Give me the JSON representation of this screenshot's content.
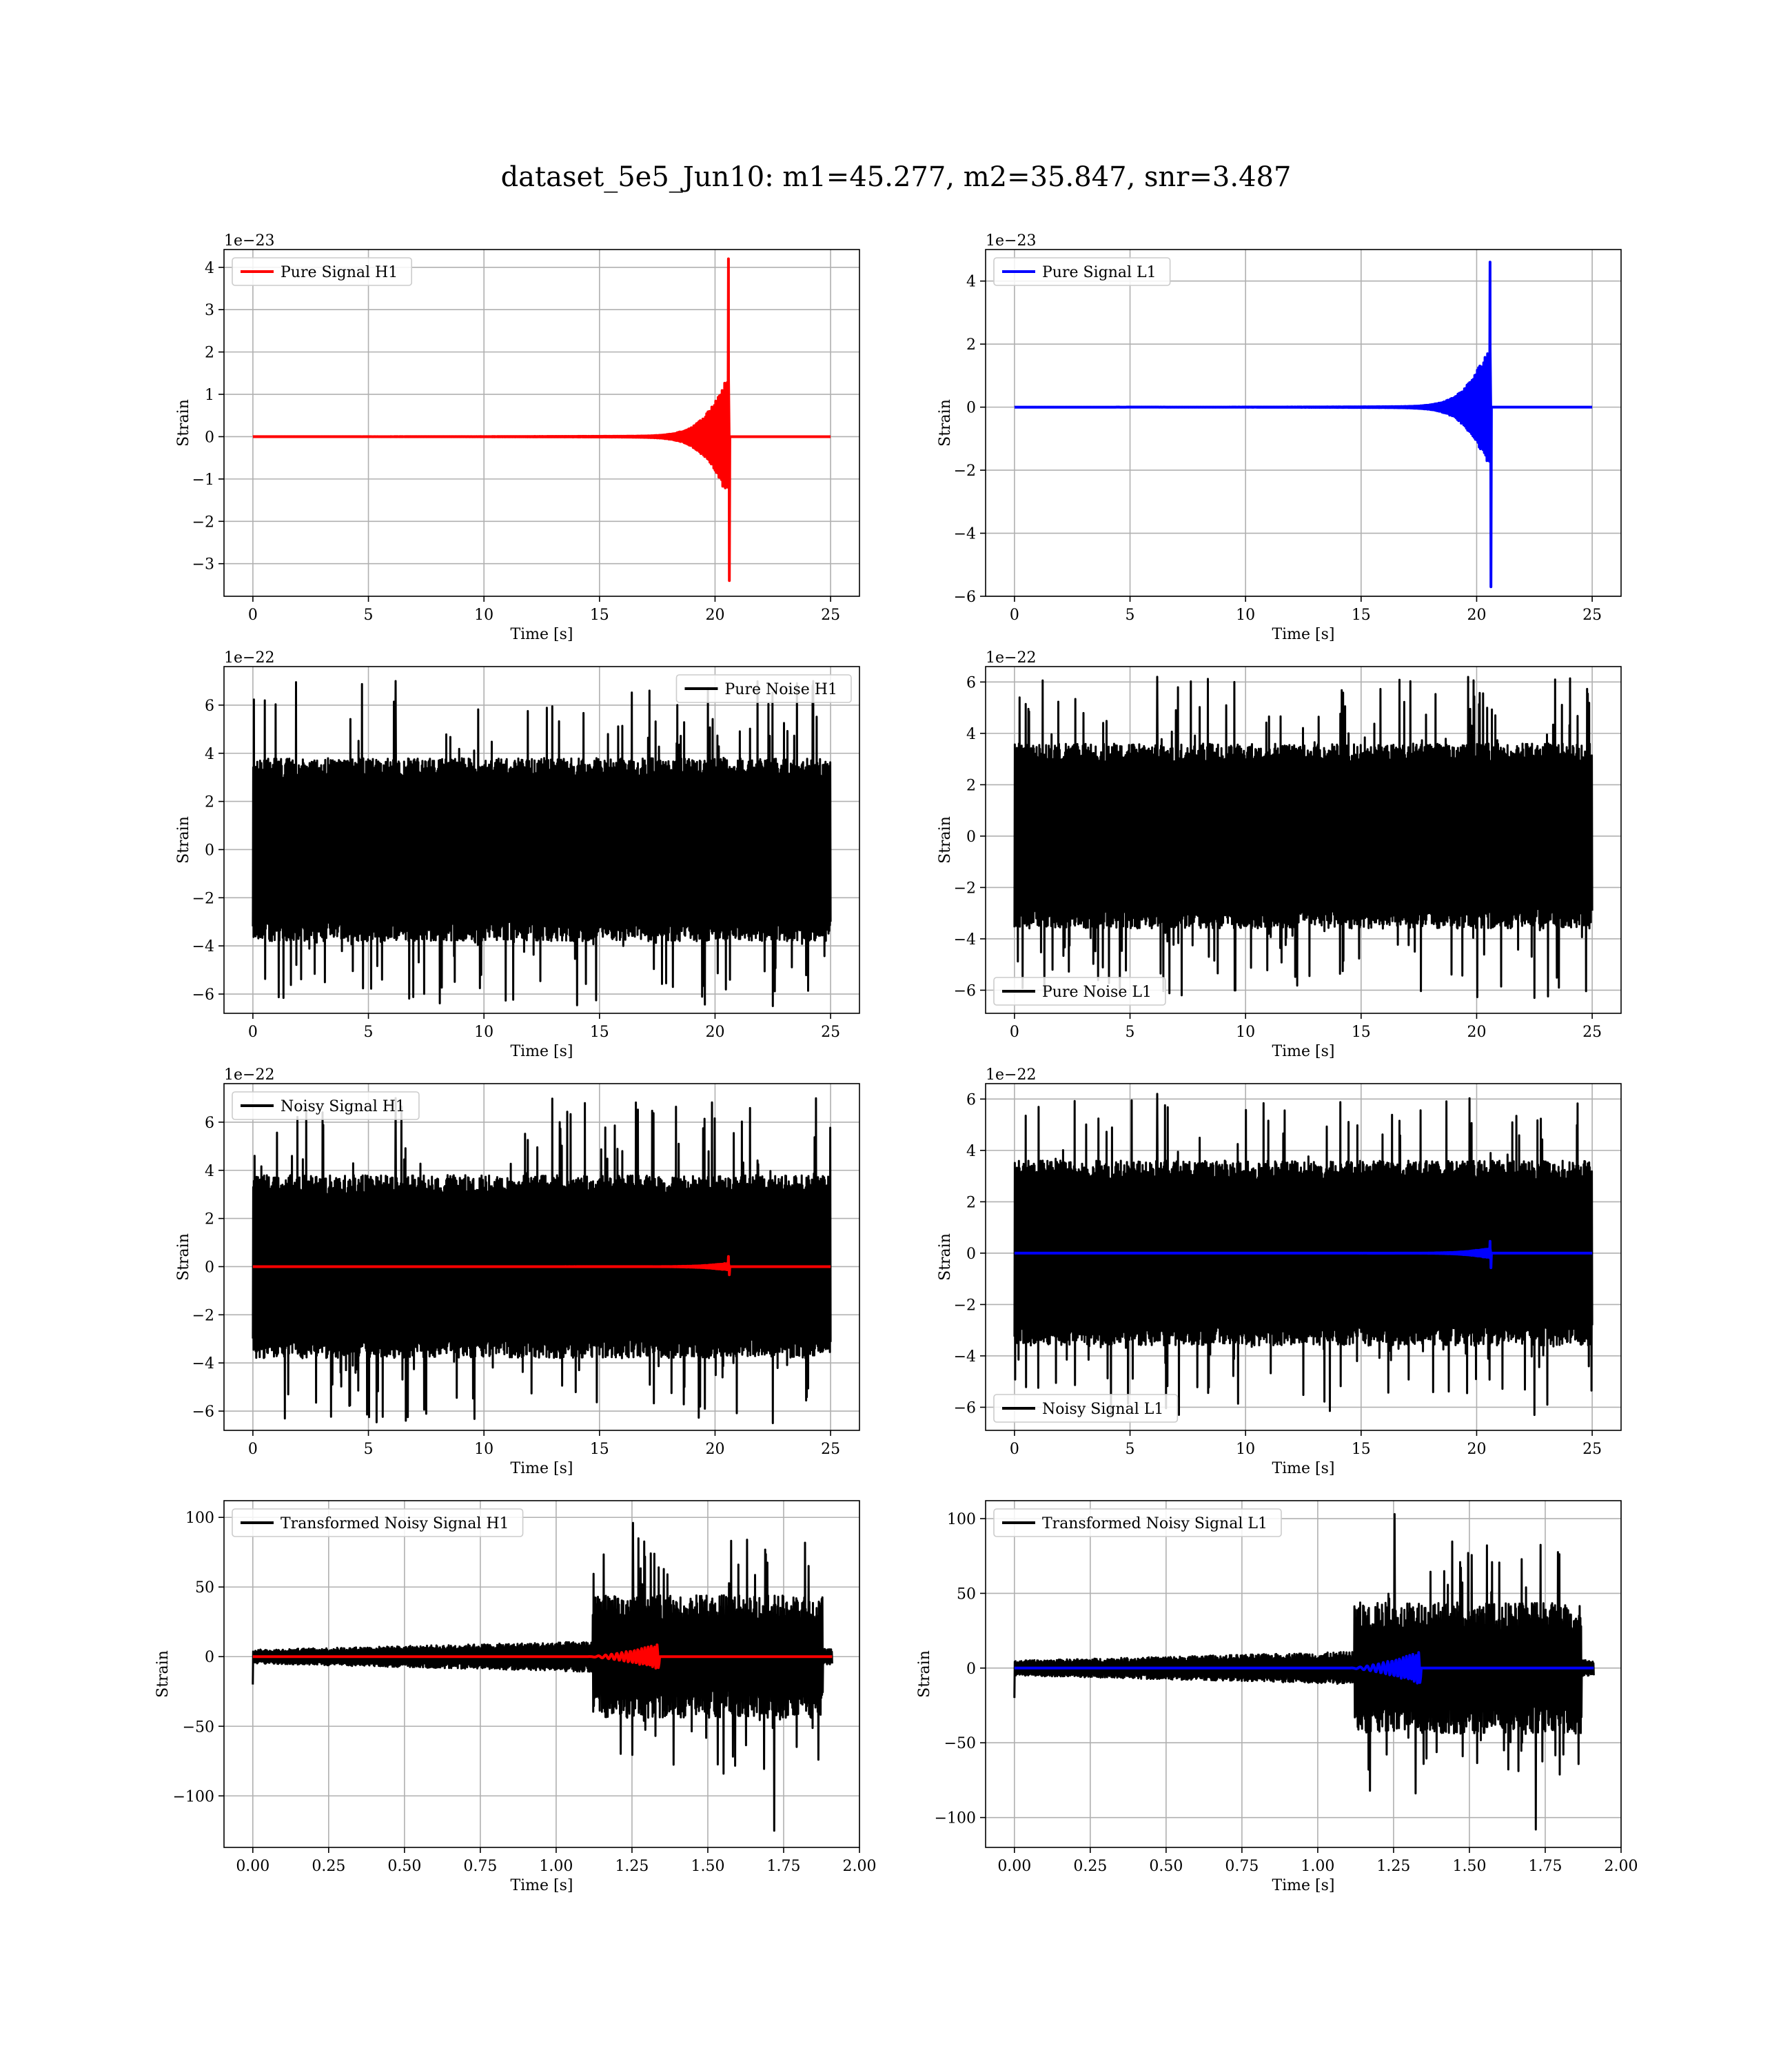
{
  "figure": {
    "title": "dataset_5e5_Jun10: m1=45.277, m2=35.847, snr=3.487"
  },
  "colors": {
    "h1": "#ff0000",
    "l1": "#0000ff",
    "noise": "#000000"
  },
  "chart_data": [
    {
      "type": "line",
      "id": "pure-signal-h1",
      "xlabel": "Time [s]",
      "ylabel": "Strain",
      "offset_label": "1e−23",
      "xlim": [
        -1.25,
        26.25
      ],
      "ylim": [
        -3.77,
        4.42
      ],
      "xticks": [
        0,
        5,
        10,
        15,
        20,
        25
      ],
      "xtick_labels": [
        "0",
        "5",
        "10",
        "15",
        "20",
        "25"
      ],
      "yticks": [
        -3,
        -2,
        -1,
        0,
        1,
        2,
        3,
        4
      ],
      "ytick_labels": [
        "−3",
        "−2",
        "−1",
        "0",
        "1",
        "2",
        "3",
        "4"
      ],
      "grid": true,
      "legend_loc": "upper-left",
      "series": [
        {
          "name": "Pure Signal H1",
          "color": "#ff0000",
          "kind": "chirp",
          "x_range": [
            0,
            25
          ],
          "merger_time": 20.6,
          "peak_max": 4.2,
          "peak_min": -3.4,
          "pre_merger_amp": 1.4
        }
      ]
    },
    {
      "type": "line",
      "id": "pure-signal-l1",
      "xlabel": "Time [s]",
      "ylabel": "Strain",
      "offset_label": "1e−23",
      "xlim": [
        -1.25,
        26.25
      ],
      "ylim": [
        -6.0,
        5.0
      ],
      "xticks": [
        0,
        5,
        10,
        15,
        20,
        25
      ],
      "xtick_labels": [
        "0",
        "5",
        "10",
        "15",
        "20",
        "25"
      ],
      "yticks": [
        -6,
        -4,
        -2,
        0,
        2,
        4
      ],
      "ytick_labels": [
        "−6",
        "−4",
        "−2",
        "0",
        "2",
        "4"
      ],
      "grid": true,
      "legend_loc": "upper-left",
      "series": [
        {
          "name": "Pure Signal L1",
          "color": "#0000ff",
          "kind": "chirp",
          "x_range": [
            0,
            25
          ],
          "merger_time": 20.6,
          "peak_max": 4.6,
          "peak_min": -5.7,
          "pre_merger_amp": 1.9
        }
      ]
    },
    {
      "type": "line",
      "id": "pure-noise-h1",
      "xlabel": "Time [s]",
      "ylabel": "Strain",
      "offset_label": "1e−22",
      "xlim": [
        -1.25,
        26.25
      ],
      "ylim": [
        -6.8,
        7.6
      ],
      "xticks": [
        0,
        5,
        10,
        15,
        20,
        25
      ],
      "xtick_labels": [
        "0",
        "5",
        "10",
        "15",
        "20",
        "25"
      ],
      "yticks": [
        -6,
        -4,
        -2,
        0,
        2,
        4,
        6
      ],
      "ytick_labels": [
        "−6",
        "−4",
        "−2",
        "0",
        "2",
        "4",
        "6"
      ],
      "grid": true,
      "legend_loc": "upper-right",
      "series": [
        {
          "name": "Pure Noise H1",
          "color": "#000000",
          "kind": "noise",
          "x_range": [
            0,
            25
          ],
          "max": 7.0,
          "min": -6.5,
          "band": 3.8
        }
      ]
    },
    {
      "type": "line",
      "id": "pure-noise-l1",
      "xlabel": "Time [s]",
      "ylabel": "Strain",
      "offset_label": "1e−22",
      "xlim": [
        -1.25,
        26.25
      ],
      "ylim": [
        -6.9,
        6.6
      ],
      "xticks": [
        0,
        5,
        10,
        15,
        20,
        25
      ],
      "xtick_labels": [
        "0",
        "5",
        "10",
        "15",
        "20",
        "25"
      ],
      "yticks": [
        -6,
        -4,
        -2,
        0,
        2,
        4,
        6
      ],
      "ytick_labels": [
        "−6",
        "−4",
        "−2",
        "0",
        "2",
        "4",
        "6"
      ],
      "grid": true,
      "legend_loc": "lower-left",
      "series": [
        {
          "name": "Pure Noise L1",
          "color": "#000000",
          "kind": "noise",
          "x_range": [
            0,
            25
          ],
          "max": 6.2,
          "min": -6.3,
          "band": 3.6
        }
      ]
    },
    {
      "type": "line",
      "id": "noisy-signal-h1",
      "xlabel": "Time [s]",
      "ylabel": "Strain",
      "offset_label": "1e−22",
      "xlim": [
        -1.25,
        26.25
      ],
      "ylim": [
        -6.8,
        7.6
      ],
      "xticks": [
        0,
        5,
        10,
        15,
        20,
        25
      ],
      "xtick_labels": [
        "0",
        "5",
        "10",
        "15",
        "20",
        "25"
      ],
      "yticks": [
        -6,
        -4,
        -2,
        0,
        2,
        4,
        6
      ],
      "ytick_labels": [
        "−6",
        "−4",
        "−2",
        "0",
        "2",
        "4",
        "6"
      ],
      "grid": true,
      "legend_loc": "upper-left",
      "series": [
        {
          "name": "Noisy Signal H1",
          "color": "#000000",
          "kind": "noise",
          "x_range": [
            0,
            25
          ],
          "max": 7.0,
          "min": -6.5,
          "band": 3.8
        },
        {
          "name": "",
          "color": "#ff0000",
          "kind": "chirp",
          "x_range": [
            0,
            25
          ],
          "merger_time": 20.6,
          "peak_max": 0.42,
          "peak_min": -0.34,
          "pre_merger_amp": 0.14
        }
      ]
    },
    {
      "type": "line",
      "id": "noisy-signal-l1",
      "xlabel": "Time [s]",
      "ylabel": "Strain",
      "offset_label": "1e−22",
      "xlim": [
        -1.25,
        26.25
      ],
      "ylim": [
        -6.9,
        6.6
      ],
      "xticks": [
        0,
        5,
        10,
        15,
        20,
        25
      ],
      "xtick_labels": [
        "0",
        "5",
        "10",
        "15",
        "20",
        "25"
      ],
      "yticks": [
        -6,
        -4,
        -2,
        0,
        2,
        4,
        6
      ],
      "ytick_labels": [
        "−6",
        "−4",
        "−2",
        "0",
        "2",
        "4",
        "6"
      ],
      "grid": true,
      "legend_loc": "lower-left",
      "series": [
        {
          "name": "Noisy Signal L1",
          "color": "#000000",
          "kind": "noise",
          "x_range": [
            0,
            25
          ],
          "max": 6.2,
          "min": -6.3,
          "band": 3.6
        },
        {
          "name": "",
          "color": "#0000ff",
          "kind": "chirp",
          "x_range": [
            0,
            25
          ],
          "merger_time": 20.6,
          "peak_max": 0.46,
          "peak_min": -0.57,
          "pre_merger_amp": 0.19
        }
      ]
    },
    {
      "type": "line",
      "id": "transformed-noisy-signal-h1",
      "xlabel": "Time [s]",
      "ylabel": "Strain",
      "offset_label": "",
      "xlim": [
        -0.095,
        2.0
      ],
      "ylim": [
        -137,
        112
      ],
      "xticks": [
        0,
        0.25,
        0.5,
        0.75,
        1.0,
        1.25,
        1.5,
        1.75,
        2.0
      ],
      "xtick_labels": [
        "0.00",
        "0.25",
        "0.50",
        "0.75",
        "1.00",
        "1.25",
        "1.50",
        "1.75",
        "2.00"
      ],
      "yticks": [
        -100,
        -50,
        0,
        50,
        100
      ],
      "ytick_labels": [
        "−100",
        "−50",
        "0",
        "50",
        "100"
      ],
      "grid": true,
      "legend_loc": "upper-left",
      "series": [
        {
          "name": "Transformed Noisy Signal H1",
          "color": "#000000",
          "kind": "transformed-noise",
          "x_range": [
            0,
            1.91
          ],
          "step_time": 1.12,
          "quiet_end": 1.88,
          "pre_amp": 9,
          "post_amp": 40,
          "max": 96,
          "min": -125
        },
        {
          "name": "",
          "color": "#ff0000",
          "kind": "transformed-chirp",
          "x_range": [
            0,
            1.91
          ],
          "start_time": 1.1,
          "end_time": 1.34,
          "peak": 9
        }
      ]
    },
    {
      "type": "line",
      "id": "transformed-noisy-signal-l1",
      "xlabel": "Time [s]",
      "ylabel": "Strain",
      "offset_label": "",
      "xlim": [
        -0.095,
        2.0
      ],
      "ylim": [
        -120,
        112
      ],
      "xticks": [
        0,
        0.25,
        0.5,
        0.75,
        1.0,
        1.25,
        1.5,
        1.75,
        2.0
      ],
      "xtick_labels": [
        "0.00",
        "0.25",
        "0.50",
        "0.75",
        "1.00",
        "1.25",
        "1.50",
        "1.75",
        "2.00"
      ],
      "yticks": [
        -100,
        -50,
        0,
        50,
        100
      ],
      "ytick_labels": [
        "−100",
        "−50",
        "0",
        "50",
        "100"
      ],
      "grid": true,
      "legend_loc": "upper-left",
      "series": [
        {
          "name": "Transformed Noisy Signal L1",
          "color": "#000000",
          "kind": "transformed-noise",
          "x_range": [
            0,
            1.91
          ],
          "step_time": 1.12,
          "quiet_end": 1.87,
          "pre_amp": 9,
          "post_amp": 40,
          "max": 103,
          "min": -108
        },
        {
          "name": "",
          "color": "#0000ff",
          "kind": "transformed-chirp",
          "x_range": [
            0,
            1.91
          ],
          "start_time": 1.1,
          "end_time": 1.34,
          "peak": 11
        }
      ]
    }
  ]
}
